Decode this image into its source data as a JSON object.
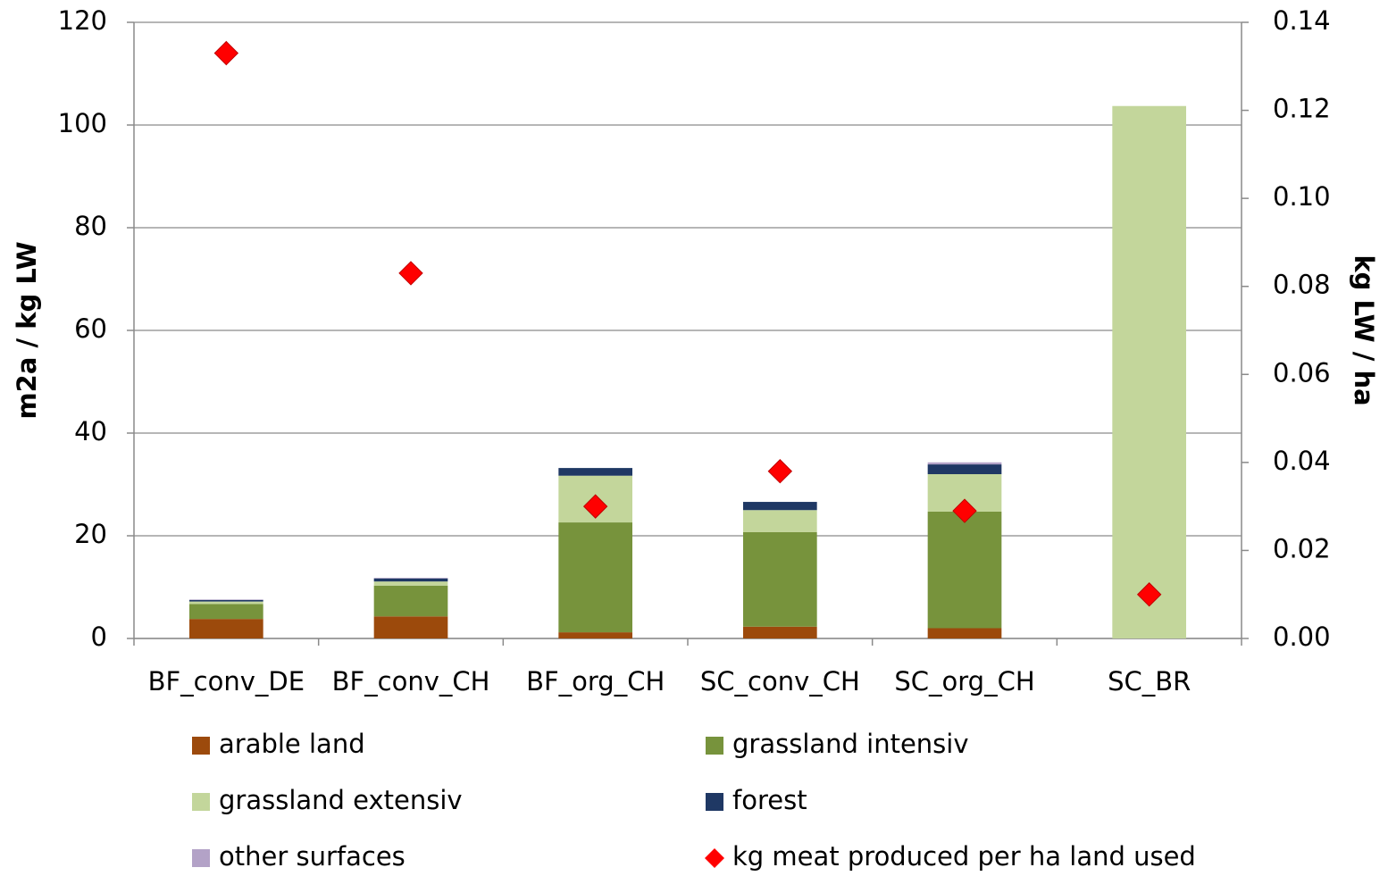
{
  "chart_data": {
    "type": "bar",
    "stacked": true,
    "categories": [
      "BF_conv_DE",
      "BF_conv_CH",
      "BF_org_CH",
      "SC_conv_CH",
      "SC_org_CH",
      "SC_BR"
    ],
    "ylabel": "m2a / kg LW",
    "y2label": "kg LW / ha",
    "ylim": [
      0,
      120
    ],
    "yticks": [
      0,
      20,
      40,
      60,
      80,
      100,
      120
    ],
    "y2lim": [
      0,
      0.14
    ],
    "y2ticks": [
      {
        "value": 0,
        "label": "0.00"
      },
      {
        "value": 0.02,
        "label": "0.02"
      },
      {
        "value": 0.04,
        "label": "0.04"
      },
      {
        "value": 0.06,
        "label": "0.06"
      },
      {
        "value": 0.08,
        "label": "0.08"
      },
      {
        "value": 0.1,
        "label": "0.10"
      },
      {
        "value": 0.12,
        "label": "0.12"
      },
      {
        "value": 0.14,
        "label": "0.14"
      }
    ],
    "grid": true,
    "series": [
      {
        "name": "arable land",
        "color": "#9c4a0c",
        "values": [
          3.8,
          4.3,
          1.2,
          2.3,
          2.0,
          0
        ]
      },
      {
        "name": "grassland intensiv",
        "color": "#77933c",
        "values": [
          2.9,
          6.0,
          21.4,
          18.4,
          22.7,
          0
        ]
      },
      {
        "name": "grassland extensiv",
        "color": "#c3d69b",
        "values": [
          0.5,
          0.8,
          9.1,
          4.3,
          7.3,
          103.7
        ]
      },
      {
        "name": "forest",
        "color": "#1f3864",
        "values": [
          0.3,
          0.6,
          1.5,
          1.6,
          1.9,
          0
        ]
      },
      {
        "name": "other surfaces",
        "color": "#b3a2c7",
        "values": [
          0.1,
          0.1,
          0,
          0,
          0.4,
          0
        ]
      },
      {
        "name": "kg meat produced per ha land used",
        "color": "#ff0000",
        "type": "scatter",
        "axis": "y2",
        "values": [
          0.133,
          0.083,
          0.03,
          0.038,
          0.029,
          0.01
        ]
      }
    ]
  }
}
